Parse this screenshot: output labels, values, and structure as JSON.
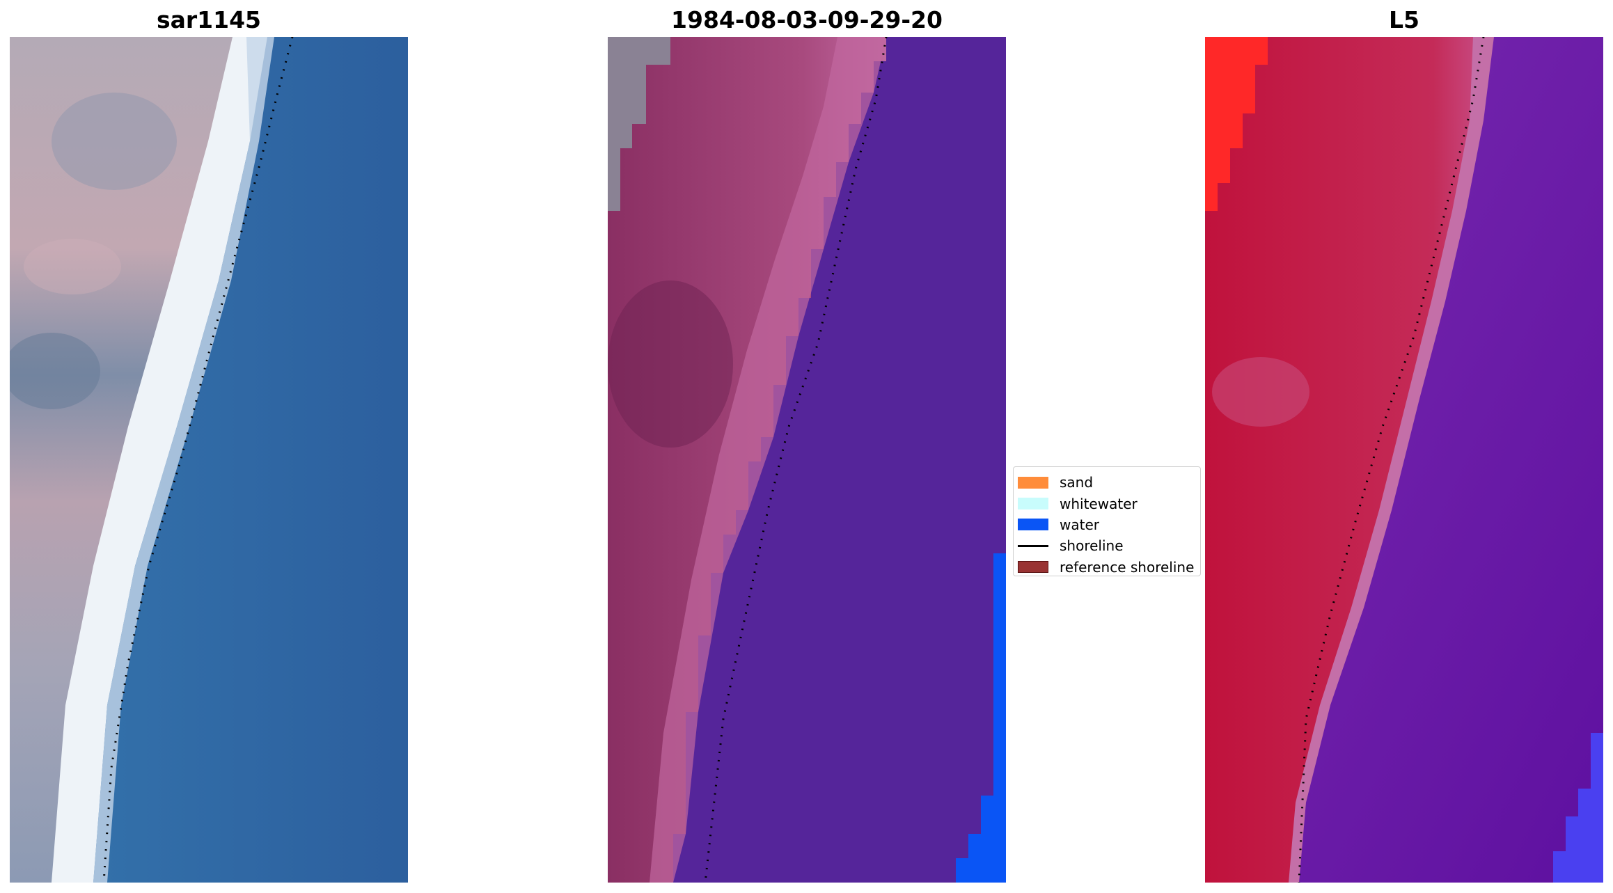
{
  "panels": {
    "left": {
      "title": "sar1145"
    },
    "mid": {
      "title": "1984-08-03-09-29-20"
    },
    "right": {
      "title": "L5"
    }
  },
  "legend": {
    "items": [
      {
        "label": "sand",
        "color": "#ff8c3a",
        "kind": "patch"
      },
      {
        "label": "whitewater",
        "color": "#c8fcfc",
        "kind": "patch"
      },
      {
        "label": "water",
        "color": "#0a55f5",
        "kind": "patch"
      },
      {
        "label": "shoreline",
        "color": "#000000",
        "kind": "line"
      },
      {
        "label": "reference shoreline",
        "color": "#993333",
        "kind": "patch"
      }
    ]
  },
  "colors": {
    "left_land": "#a8a0ae",
    "left_water": "#2f6aa4",
    "left_surf": "#f2f6fa",
    "mid_land": "#9a3f74",
    "mid_water": "#55259a",
    "mid_bright_water": "#0a55f5",
    "right_land": "#c41a42",
    "right_water": "#6a16a2",
    "right_bright": "#ff2828"
  }
}
